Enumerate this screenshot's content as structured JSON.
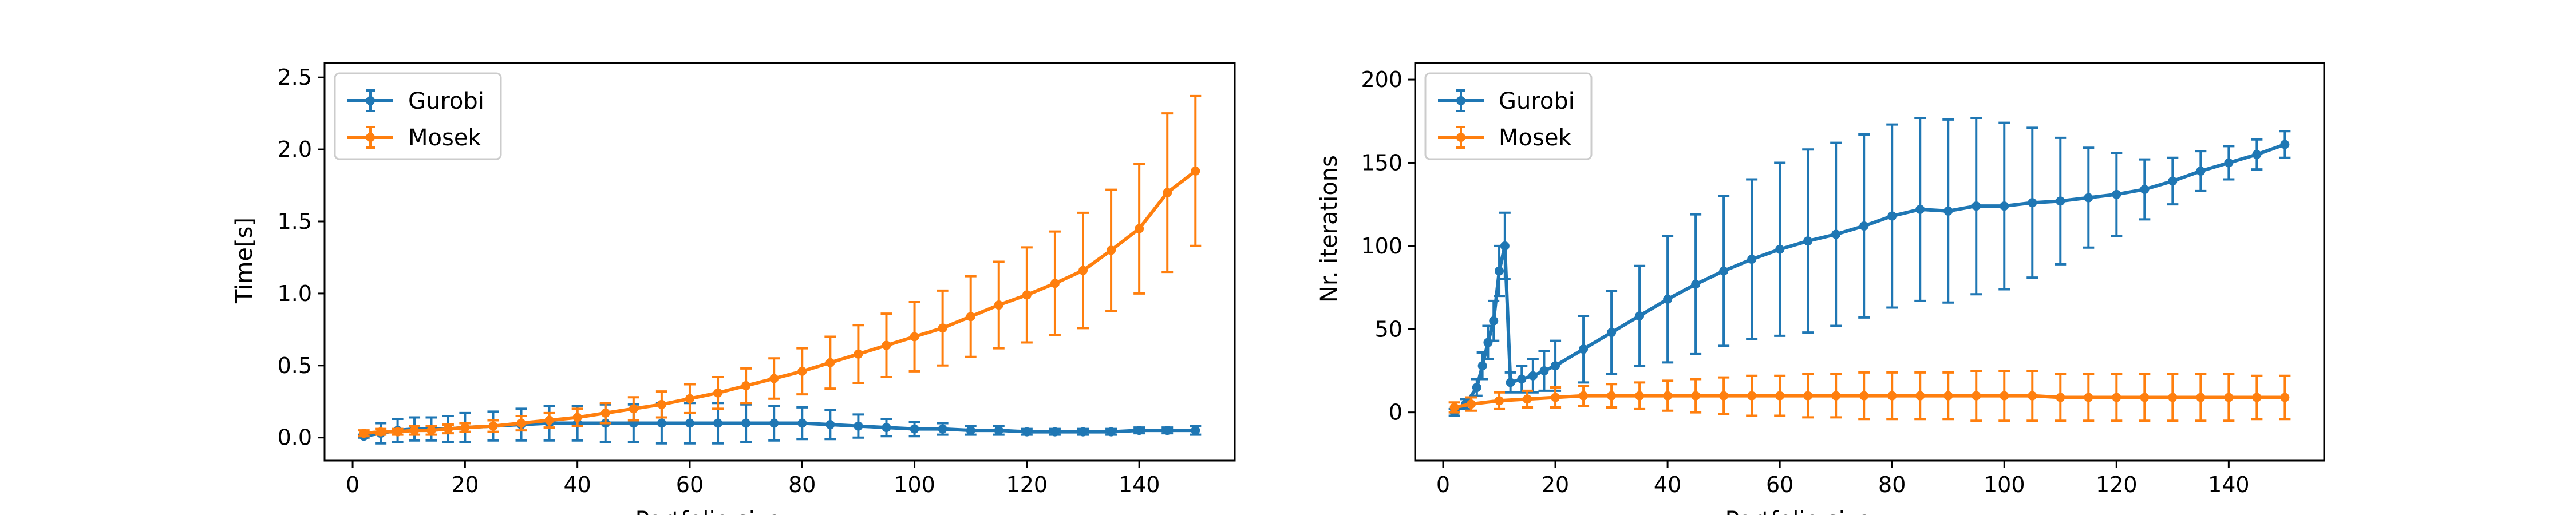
{
  "colors": {
    "gurobi": "#1f77b4",
    "mosek": "#ff7f0e"
  },
  "chart_data": [
    {
      "type": "line",
      "error_bars": true,
      "xlabel": "Portfolio size",
      "ylabel": "Time[s]",
      "xlim": [
        -5,
        157
      ],
      "ylim": [
        -0.16,
        2.6
      ],
      "xticks": [
        0,
        20,
        40,
        60,
        80,
        100,
        120,
        140
      ],
      "xtick_labels": [
        "0",
        "20",
        "40",
        "60",
        "80",
        "100",
        "120",
        "140"
      ],
      "yticks": [
        0.0,
        0.5,
        1.0,
        1.5,
        2.0,
        2.5
      ],
      "ytick_labels": [
        "0.0",
        "0.5",
        "1.0",
        "1.5",
        "2.0",
        "2.5"
      ],
      "legend_position": "upper-left",
      "series": [
        {
          "name": "Gurobi",
          "color": "#1f77b4",
          "x": [
            2,
            5,
            8,
            11,
            14,
            17,
            20,
            25,
            30,
            35,
            40,
            45,
            50,
            55,
            60,
            65,
            70,
            75,
            80,
            85,
            90,
            95,
            100,
            105,
            110,
            115,
            120,
            125,
            130,
            135,
            140,
            145,
            150
          ],
          "y": [
            0.01,
            0.03,
            0.05,
            0.06,
            0.06,
            0.06,
            0.07,
            0.08,
            0.09,
            0.1,
            0.1,
            0.1,
            0.1,
            0.1,
            0.1,
            0.1,
            0.1,
            0.1,
            0.1,
            0.09,
            0.08,
            0.07,
            0.06,
            0.06,
            0.05,
            0.05,
            0.04,
            0.04,
            0.04,
            0.04,
            0.05,
            0.05,
            0.05
          ],
          "err": [
            0.01,
            0.07,
            0.08,
            0.08,
            0.08,
            0.09,
            0.1,
            0.1,
            0.11,
            0.12,
            0.12,
            0.13,
            0.13,
            0.14,
            0.14,
            0.14,
            0.13,
            0.12,
            0.11,
            0.1,
            0.08,
            0.06,
            0.05,
            0.04,
            0.03,
            0.03,
            0.02,
            0.02,
            0.02,
            0.02,
            0.02,
            0.02,
            0.03
          ]
        },
        {
          "name": "Mosek",
          "color": "#ff7f0e",
          "x": [
            2,
            5,
            8,
            11,
            14,
            17,
            20,
            25,
            30,
            35,
            40,
            45,
            50,
            55,
            60,
            65,
            70,
            75,
            80,
            85,
            90,
            95,
            100,
            105,
            110,
            115,
            120,
            125,
            130,
            135,
            140,
            145,
            150
          ],
          "y": [
            0.03,
            0.04,
            0.04,
            0.05,
            0.05,
            0.06,
            0.07,
            0.08,
            0.1,
            0.12,
            0.14,
            0.17,
            0.2,
            0.23,
            0.27,
            0.31,
            0.36,
            0.41,
            0.46,
            0.52,
            0.58,
            0.64,
            0.7,
            0.76,
            0.84,
            0.92,
            0.99,
            1.07,
            1.16,
            1.3,
            1.45,
            1.7,
            1.85
          ],
          "err": [
            0.02,
            0.02,
            0.02,
            0.03,
            0.03,
            0.03,
            0.03,
            0.04,
            0.05,
            0.05,
            0.06,
            0.07,
            0.08,
            0.09,
            0.1,
            0.11,
            0.12,
            0.14,
            0.16,
            0.18,
            0.2,
            0.22,
            0.24,
            0.26,
            0.28,
            0.3,
            0.33,
            0.36,
            0.4,
            0.42,
            0.45,
            0.55,
            0.52
          ]
        }
      ]
    },
    {
      "type": "line",
      "error_bars": true,
      "xlabel": "Portfolio size",
      "ylabel": "Nr. iterations",
      "xlim": [
        -5,
        157
      ],
      "ylim": [
        -29,
        210
      ],
      "xticks": [
        0,
        20,
        40,
        60,
        80,
        100,
        120,
        140
      ],
      "xtick_labels": [
        "0",
        "20",
        "40",
        "60",
        "80",
        "100",
        "120",
        "140"
      ],
      "yticks": [
        0,
        50,
        100,
        150,
        200
      ],
      "ytick_labels": [
        "0",
        "50",
        "100",
        "150",
        "200"
      ],
      "legend_position": "upper-left",
      "series": [
        {
          "name": "Gurobi",
          "color": "#1f77b4",
          "x": [
            2,
            4,
            6,
            7,
            8,
            9,
            10,
            11,
            12,
            14,
            16,
            18,
            20,
            25,
            30,
            35,
            40,
            45,
            50,
            55,
            60,
            65,
            70,
            75,
            80,
            85,
            90,
            95,
            100,
            105,
            110,
            115,
            120,
            125,
            130,
            135,
            140,
            145,
            150
          ],
          "y": [
            0,
            5,
            15,
            28,
            42,
            55,
            85,
            100,
            18,
            20,
            22,
            25,
            28,
            38,
            48,
            58,
            68,
            77,
            85,
            92,
            98,
            103,
            107,
            112,
            118,
            122,
            121,
            124,
            124,
            126,
            127,
            129,
            131,
            134,
            139,
            145,
            150,
            155,
            161
          ],
          "err": [
            2,
            3,
            5,
            8,
            10,
            12,
            15,
            20,
            6,
            8,
            10,
            12,
            15,
            20,
            25,
            30,
            38,
            42,
            45,
            48,
            52,
            55,
            55,
            55,
            55,
            55,
            55,
            53,
            50,
            45,
            38,
            30,
            25,
            18,
            14,
            12,
            10,
            9,
            8
          ]
        },
        {
          "name": "Mosek",
          "color": "#ff7f0e",
          "x": [
            2,
            5,
            10,
            15,
            20,
            25,
            30,
            35,
            40,
            45,
            50,
            55,
            60,
            65,
            70,
            75,
            80,
            85,
            90,
            95,
            100,
            105,
            110,
            115,
            120,
            125,
            130,
            135,
            140,
            145,
            150
          ],
          "y": [
            3,
            5,
            7,
            8,
            9,
            10,
            10,
            10,
            10,
            10,
            10,
            10,
            10,
            10,
            10,
            10,
            10,
            10,
            10,
            10,
            10,
            10,
            9,
            9,
            9,
            9,
            9,
            9,
            9,
            9,
            9
          ],
          "err": [
            3,
            4,
            5,
            5,
            6,
            6,
            7,
            8,
            9,
            10,
            11,
            12,
            12,
            13,
            13,
            14,
            14,
            14,
            14,
            15,
            15,
            15,
            14,
            14,
            14,
            14,
            14,
            14,
            14,
            13,
            13
          ]
        }
      ]
    }
  ]
}
